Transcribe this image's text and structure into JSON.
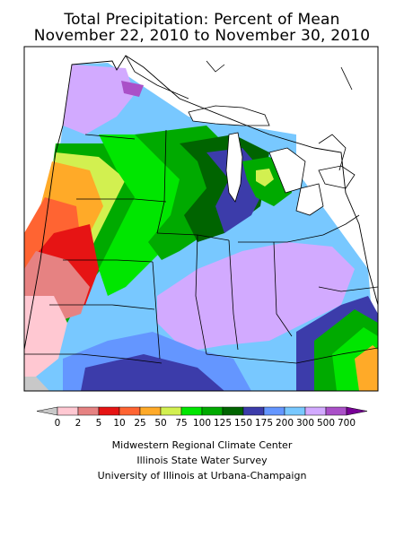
{
  "title": {
    "line1": "Total Precipitation: Percent of Mean",
    "line2": "November 22, 2010 to November 30, 2010"
  },
  "legend": {
    "labels": [
      "0",
      "2",
      "5",
      "10",
      "25",
      "50",
      "75",
      "100",
      "125",
      "150",
      "175",
      "200",
      "300",
      "500",
      "700"
    ],
    "colors": [
      "#c8c8c8",
      "#ffc8d2",
      "#e68282",
      "#e61414",
      "#ff6432",
      "#ffaa28",
      "#d2f050",
      "#00e600",
      "#00aa00",
      "#006400",
      "#3c3caa",
      "#6496ff",
      "#78c8ff",
      "#d2aaff",
      "#aa50c8",
      "#780096"
    ]
  },
  "credits": {
    "line1": "Midwestern Regional Climate Center",
    "line2": "Illinois State Water Survey",
    "line3": "University of Illinois at Urbana-Champaign"
  }
}
